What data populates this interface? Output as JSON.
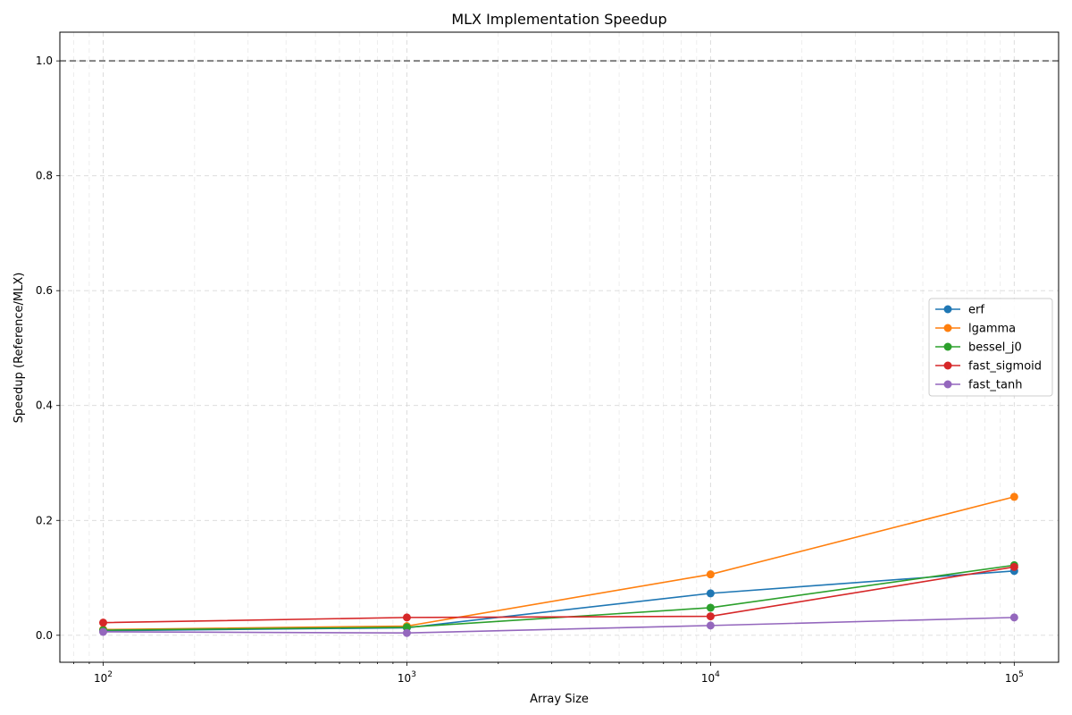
{
  "chart_data": {
    "type": "line",
    "title": "MLX Implementation Speedup",
    "xlabel": "Array Size",
    "ylabel": "Speedup (Reference/MLX)",
    "xscale": "log",
    "x": [
      100,
      1000,
      10000,
      100000
    ],
    "xlim": [
      72,
      140000
    ],
    "ylim": [
      -0.047,
      1.05
    ],
    "yticks": [
      0.0,
      0.2,
      0.4,
      0.6,
      0.8,
      1.0
    ],
    "xticks": [
      {
        "value": 100,
        "base": "10",
        "exp": "2"
      },
      {
        "value": 1000,
        "base": "10",
        "exp": "3"
      },
      {
        "value": 10000,
        "base": "10",
        "exp": "4"
      },
      {
        "value": 100000,
        "base": "10",
        "exp": "5"
      }
    ],
    "grid": true,
    "legend_position": "center-right",
    "reference_line": {
      "y": 1.0,
      "style": "dashed",
      "color": "#808080"
    },
    "series": [
      {
        "name": "erf",
        "color": "#1f77b4",
        "values": [
          0.008,
          0.013,
          0.073,
          0.112
        ]
      },
      {
        "name": "lgamma",
        "color": "#ff7f0e",
        "values": [
          0.01,
          0.016,
          0.106,
          0.241
        ]
      },
      {
        "name": "bessel_j0",
        "color": "#2ca02c",
        "values": [
          0.009,
          0.014,
          0.048,
          0.122
        ]
      },
      {
        "name": "fast_sigmoid",
        "color": "#d62728",
        "values": [
          0.022,
          0.031,
          0.033,
          0.119
        ]
      },
      {
        "name": "fast_tanh",
        "color": "#9467bd",
        "values": [
          0.006,
          0.004,
          0.017,
          0.031
        ]
      }
    ]
  }
}
